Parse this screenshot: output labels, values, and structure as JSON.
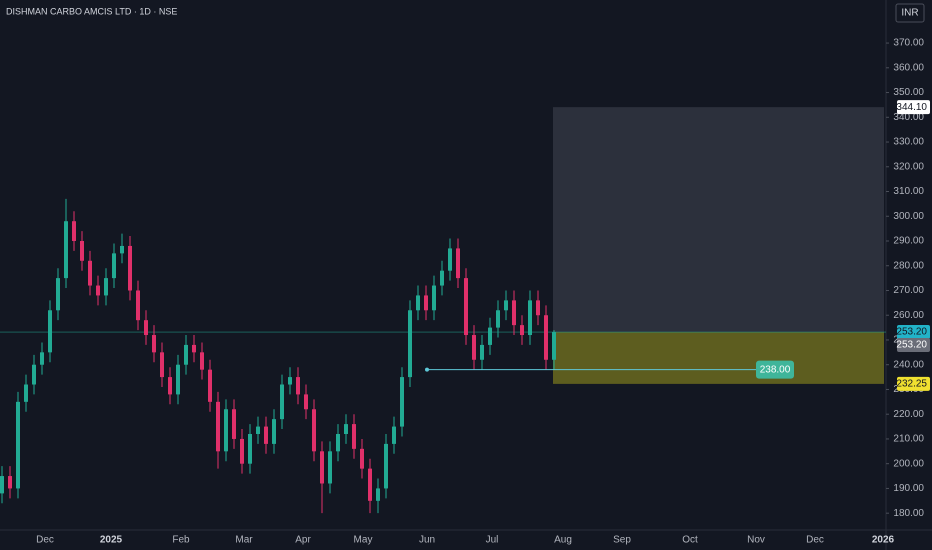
{
  "chart_data": {
    "type": "candlestick",
    "title": "DISHMAN CARBO AMCIS LTD · 1D · NSE",
    "currency": "INR",
    "up_color": "#22ab94",
    "down_color": "#e0306a",
    "open": [
      188,
      195,
      190,
      225,
      232,
      240,
      245,
      262,
      275,
      298,
      290,
      282,
      272,
      268,
      275,
      285,
      288,
      270,
      258,
      252,
      245,
      235,
      228,
      240,
      248,
      245,
      238,
      225,
      205,
      222,
      210,
      200,
      212,
      215,
      208,
      218,
      232,
      235,
      228,
      222,
      205,
      192,
      205,
      212,
      216,
      206,
      198,
      185,
      190,
      208,
      215,
      235,
      262,
      268,
      262,
      272,
      278,
      287,
      275,
      252,
      242,
      248,
      255,
      262,
      266,
      256,
      252,
      266,
      260,
      242
    ],
    "high": [
      199,
      199,
      229,
      236,
      244,
      249,
      266,
      279,
      307,
      302,
      294,
      286,
      276,
      279,
      289,
      293,
      292,
      274,
      262,
      256,
      249,
      239,
      244,
      252,
      252,
      249,
      242,
      229,
      226,
      226,
      214,
      216,
      219,
      219,
      222,
      236,
      239,
      239,
      232,
      226,
      209,
      209,
      216,
      220,
      220,
      210,
      202,
      194,
      212,
      219,
      239,
      266,
      272,
      272,
      276,
      282,
      291,
      291,
      279,
      256,
      252,
      259,
      266,
      270,
      270,
      260,
      270,
      270,
      264,
      254
    ],
    "low": [
      184,
      186,
      186,
      221,
      228,
      236,
      241,
      258,
      271,
      286,
      278,
      268,
      264,
      264,
      271,
      281,
      266,
      254,
      248,
      241,
      231,
      224,
      224,
      236,
      241,
      234,
      221,
      198,
      201,
      206,
      196,
      196,
      208,
      204,
      204,
      214,
      228,
      224,
      218,
      201,
      180,
      188,
      201,
      208,
      202,
      194,
      180,
      180,
      186,
      204,
      211,
      231,
      258,
      258,
      258,
      268,
      274,
      271,
      248,
      238,
      238,
      244,
      251,
      258,
      252,
      248,
      248,
      256,
      238,
      238
    ],
    "close": [
      195,
      190,
      225,
      232,
      240,
      245,
      262,
      275,
      298,
      290,
      282,
      272,
      268,
      275,
      285,
      288,
      270,
      258,
      252,
      245,
      235,
      228,
      240,
      248,
      245,
      238,
      225,
      205,
      222,
      210,
      200,
      212,
      215,
      208,
      218,
      232,
      235,
      228,
      222,
      205,
      192,
      205,
      212,
      216,
      206,
      198,
      185,
      190,
      208,
      215,
      235,
      262,
      268,
      262,
      272,
      278,
      287,
      275,
      252,
      242,
      248,
      255,
      262,
      266,
      256,
      252,
      266,
      260,
      242,
      253.2
    ],
    "ylim": [
      173.2,
      387.4
    ],
    "yticks": [
      {
        "value": 180,
        "label": "180.00"
      },
      {
        "value": 190,
        "label": "190.00"
      },
      {
        "value": 200,
        "label": "200.00"
      },
      {
        "value": 210,
        "label": "210.00"
      },
      {
        "value": 220,
        "label": "220.00"
      },
      {
        "value": 230,
        "label": "230.00"
      },
      {
        "value": 240,
        "label": "240.00"
      },
      {
        "value": 250,
        "label": "250.00"
      },
      {
        "value": 260,
        "label": "260.00"
      },
      {
        "value": 270,
        "label": "270.00"
      },
      {
        "value": 280,
        "label": "280.00"
      },
      {
        "value": 290,
        "label": "290.00"
      },
      {
        "value": 300,
        "label": "300.00"
      },
      {
        "value": 310,
        "label": "310.00"
      },
      {
        "value": 320,
        "label": "320.00"
      },
      {
        "value": 330,
        "label": "330.00"
      },
      {
        "value": 340,
        "label": "340.00"
      },
      {
        "value": 350,
        "label": "350.00"
      },
      {
        "value": 360,
        "label": "360.00"
      },
      {
        "value": 370,
        "label": "370.00"
      }
    ],
    "x_labels": [
      "Dec",
      "2025",
      "Feb",
      "Mar",
      "Apr",
      "May",
      "Jun",
      "Jul",
      "Aug",
      "Sep",
      "Oct",
      "Nov",
      "Dec",
      "2026"
    ],
    "last_price": {
      "value": 253.2,
      "label": "253.20"
    },
    "position": {
      "target": {
        "value": 344.1,
        "label": "344.10"
      },
      "entry": {
        "value": 253.2,
        "label": "253.20"
      },
      "stop": {
        "value": 232.25,
        "label": "232.25"
      }
    },
    "level": {
      "value": 238,
      "label": "238.00"
    }
  }
}
